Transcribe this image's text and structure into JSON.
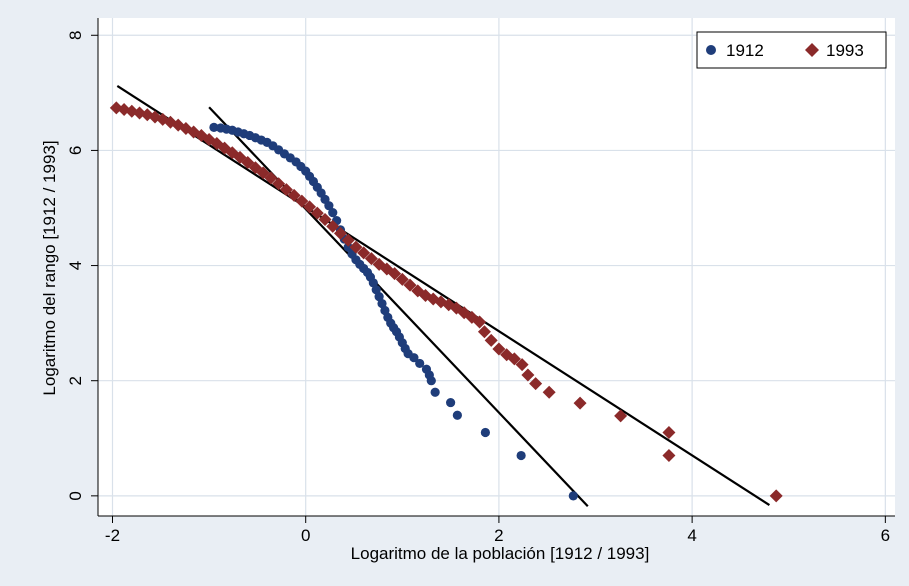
{
  "chart_data": {
    "type": "scatter",
    "xlabel": "Logaritmo de la población [1912 / 1993]",
    "ylabel": "Logaritmo del rango [1912 / 1993]",
    "xlim": [
      -2.15,
      6.1
    ],
    "ylim": [
      -0.35,
      8.3
    ],
    "xticks": [
      -2,
      0,
      2,
      4,
      6
    ],
    "yticks": [
      0,
      2,
      4,
      6,
      8
    ],
    "grid": "major gridlines on both axes",
    "legend": "top-right",
    "colors": {
      "background": "#e9eef4",
      "plot_area": "#ffffff",
      "grid": "#d9e1ea",
      "series_1912": "#1f3d7a",
      "series_1993": "#8b2a2a",
      "fit_line": "#000000"
    },
    "series": [
      {
        "name": "1912",
        "marker": "circle",
        "color": "#1f3d7a",
        "points": [
          [
            -0.95,
            6.4
          ],
          [
            -0.88,
            6.39
          ],
          [
            -0.82,
            6.37
          ],
          [
            -0.76,
            6.35
          ],
          [
            -0.7,
            6.32
          ],
          [
            -0.64,
            6.29
          ],
          [
            -0.58,
            6.26
          ],
          [
            -0.52,
            6.22
          ],
          [
            -0.46,
            6.18
          ],
          [
            -0.4,
            6.14
          ],
          [
            -0.34,
            6.08
          ],
          [
            -0.28,
            6.01
          ],
          [
            -0.22,
            5.94
          ],
          [
            -0.16,
            5.87
          ],
          [
            -0.1,
            5.8
          ],
          [
            -0.05,
            5.72
          ],
          [
            0.0,
            5.64
          ],
          [
            0.04,
            5.55
          ],
          [
            0.08,
            5.46
          ],
          [
            0.12,
            5.36
          ],
          [
            0.16,
            5.26
          ],
          [
            0.2,
            5.15
          ],
          [
            0.24,
            5.04
          ],
          [
            0.28,
            4.92
          ],
          [
            0.32,
            4.78
          ],
          [
            0.36,
            4.62
          ],
          [
            0.4,
            4.46
          ],
          [
            0.44,
            4.32
          ],
          [
            0.48,
            4.2
          ],
          [
            0.52,
            4.1
          ],
          [
            0.56,
            4.02
          ],
          [
            0.6,
            3.95
          ],
          [
            0.64,
            3.88
          ],
          [
            0.67,
            3.8
          ],
          [
            0.7,
            3.7
          ],
          [
            0.73,
            3.58
          ],
          [
            0.76,
            3.46
          ],
          [
            0.79,
            3.34
          ],
          [
            0.82,
            3.22
          ],
          [
            0.85,
            3.1
          ],
          [
            0.88,
            3.0
          ],
          [
            0.91,
            2.92
          ],
          [
            0.94,
            2.85
          ],
          [
            0.97,
            2.76
          ],
          [
            1.0,
            2.66
          ],
          [
            1.03,
            2.56
          ],
          [
            1.06,
            2.47
          ],
          [
            1.12,
            2.4
          ],
          [
            1.18,
            2.3
          ],
          [
            1.25,
            2.2
          ],
          [
            1.28,
            2.1
          ],
          [
            1.3,
            2.0
          ],
          [
            1.34,
            1.8
          ],
          [
            1.5,
            1.62
          ],
          [
            1.57,
            1.4
          ],
          [
            1.86,
            1.1
          ],
          [
            2.23,
            0.7
          ],
          [
            2.77,
            0.0
          ]
        ]
      },
      {
        "name": "1993",
        "marker": "diamond",
        "color": "#8b2a2a",
        "points": [
          [
            -1.96,
            6.74
          ],
          [
            -1.88,
            6.71
          ],
          [
            -1.8,
            6.68
          ],
          [
            -1.72,
            6.65
          ],
          [
            -1.64,
            6.62
          ],
          [
            -1.56,
            6.58
          ],
          [
            -1.48,
            6.54
          ],
          [
            -1.4,
            6.49
          ],
          [
            -1.32,
            6.44
          ],
          [
            -1.24,
            6.38
          ],
          [
            -1.16,
            6.32
          ],
          [
            -1.08,
            6.26
          ],
          [
            -1.0,
            6.19
          ],
          [
            -0.92,
            6.12
          ],
          [
            -0.84,
            6.04
          ],
          [
            -0.76,
            5.96
          ],
          [
            -0.68,
            5.88
          ],
          [
            -0.6,
            5.79
          ],
          [
            -0.52,
            5.7
          ],
          [
            -0.44,
            5.61
          ],
          [
            -0.36,
            5.52
          ],
          [
            -0.28,
            5.42
          ],
          [
            -0.2,
            5.32
          ],
          [
            -0.12,
            5.22
          ],
          [
            -0.04,
            5.12
          ],
          [
            0.04,
            5.02
          ],
          [
            0.12,
            4.91
          ],
          [
            0.2,
            4.8
          ],
          [
            0.28,
            4.68
          ],
          [
            0.36,
            4.56
          ],
          [
            0.44,
            4.44
          ],
          [
            0.52,
            4.32
          ],
          [
            0.6,
            4.22
          ],
          [
            0.68,
            4.12
          ],
          [
            0.76,
            4.02
          ],
          [
            0.84,
            3.94
          ],
          [
            0.92,
            3.86
          ],
          [
            1.0,
            3.76
          ],
          [
            1.08,
            3.66
          ],
          [
            1.16,
            3.56
          ],
          [
            1.24,
            3.48
          ],
          [
            1.32,
            3.42
          ],
          [
            1.4,
            3.37
          ],
          [
            1.48,
            3.32
          ],
          [
            1.56,
            3.26
          ],
          [
            1.64,
            3.18
          ],
          [
            1.72,
            3.1
          ],
          [
            1.8,
            3.02
          ],
          [
            1.85,
            2.85
          ],
          [
            1.92,
            2.7
          ],
          [
            2.0,
            2.55
          ],
          [
            2.08,
            2.45
          ],
          [
            2.16,
            2.38
          ],
          [
            2.24,
            2.28
          ],
          [
            2.3,
            2.1
          ],
          [
            2.38,
            1.95
          ],
          [
            2.52,
            1.8
          ],
          [
            2.84,
            1.61
          ],
          [
            3.26,
            1.39
          ],
          [
            3.76,
            1.1
          ],
          [
            3.76,
            0.7
          ],
          [
            4.87,
            0.0
          ]
        ]
      }
    ],
    "fit_lines": [
      {
        "series": "1912",
        "from": [
          -1.0,
          6.75
        ],
        "to": [
          2.92,
          -0.18
        ]
      },
      {
        "series": "1993",
        "from": [
          -1.95,
          7.12
        ],
        "to": [
          4.8,
          -0.16
        ]
      }
    ]
  }
}
